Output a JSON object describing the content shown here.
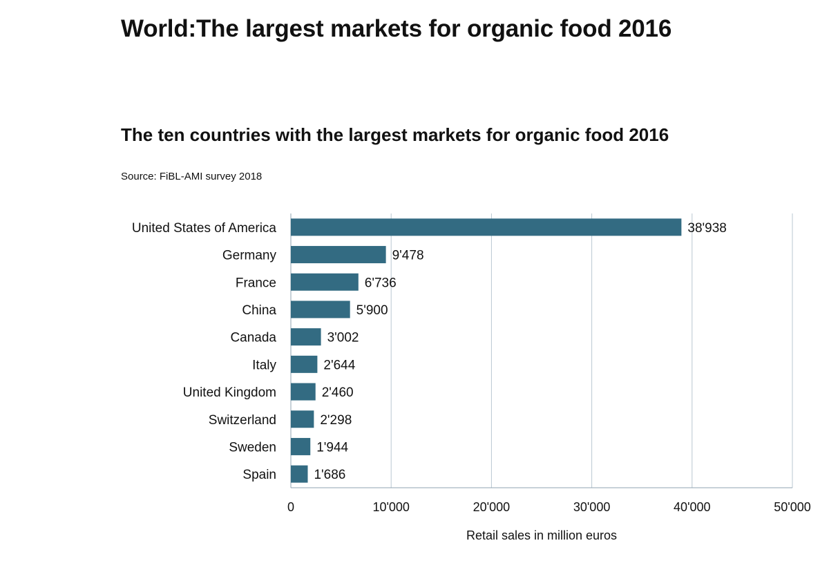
{
  "page_title": "World:The largest markets for organic food 2016",
  "chart_data": {
    "type": "bar",
    "orientation": "horizontal",
    "title": "The ten countries with the largest markets for organic food 2016",
    "source": "Source: FiBL-AMI survey 2018",
    "xlabel": "Retail sales in million euros",
    "ylabel": "",
    "xlim": [
      0,
      50000
    ],
    "grid": true,
    "categories": [
      "United States of America",
      "Germany",
      "France",
      "China",
      "Canada",
      "Italy",
      "United Kingdom",
      "Switzerland",
      "Sweden",
      "Spain"
    ],
    "values": [
      38938,
      9478,
      6736,
      5900,
      3002,
      2644,
      2460,
      2298,
      1944,
      1686
    ],
    "value_labels": [
      "38'938",
      "9'478",
      "6'736",
      "5'900",
      "3'002",
      "2'644",
      "2'460",
      "2'298",
      "1'944",
      "1'686"
    ],
    "ticks": [
      0,
      10000,
      20000,
      30000,
      40000,
      50000
    ],
    "tick_labels": [
      "0",
      "10'000",
      "20'000",
      "30'000",
      "40'000",
      "50'000"
    ],
    "bar_color": "#336b82",
    "grid_color": "#b9c7d1"
  }
}
